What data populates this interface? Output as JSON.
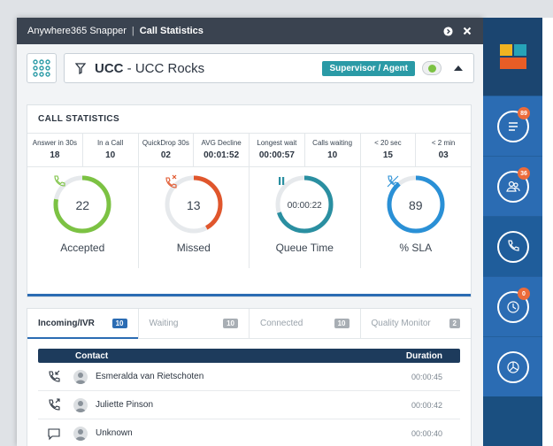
{
  "window": {
    "app_name": "Anywhere365 Snapper",
    "separator": "|",
    "section": "Call Statistics"
  },
  "queue": {
    "name_bold": "UCC",
    "name_rest": " - UCC Rocks",
    "role_label": "Supervisor / Agent"
  },
  "stats": {
    "heading": "CALL STATISTICS",
    "metrics": [
      {
        "label": "Answer in 30s",
        "value": "18"
      },
      {
        "label": "In a Call",
        "value": "10"
      },
      {
        "label": "QuickDrop 30s",
        "value": "02"
      },
      {
        "label": "AVG Decline",
        "value": "00:01:52"
      },
      {
        "label": "Longest wait",
        "value": "00:00:57"
      },
      {
        "label": "Calls waiting",
        "value": "10"
      },
      {
        "label": "< 20 sec",
        "value": "15"
      },
      {
        "label": "< 2 min",
        "value": "03"
      }
    ],
    "gauges": [
      {
        "label": "Accepted",
        "value": "22",
        "color": "#7cc243",
        "fraction": 0.78,
        "icon": "phone-icon"
      },
      {
        "label": "Missed",
        "value": "13",
        "color": "#e0562c",
        "fraction": 0.42,
        "icon": "missed-call-icon"
      },
      {
        "label": "Queue Time",
        "value": "00:00:22",
        "color": "#2a8fa1",
        "fraction": 0.7,
        "icon": "pause-icon"
      },
      {
        "label": "% SLA",
        "value": "89",
        "color": "#2a90d6",
        "fraction": 0.89,
        "icon": "sla-phone-icon"
      }
    ]
  },
  "tabs": [
    {
      "label": "Incoming/IVR",
      "count": "10",
      "active": true
    },
    {
      "label": "Waiting",
      "count": "10",
      "active": false
    },
    {
      "label": "Connected",
      "count": "10",
      "active": false
    },
    {
      "label": "Quality Monitor",
      "count": "2",
      "active": false
    }
  ],
  "list": {
    "col_contact": "Contact",
    "col_duration": "Duration",
    "rows": [
      {
        "name": "Esmeralda van Rietschoten",
        "duration": "00:00:45",
        "icon": "incoming-call-icon"
      },
      {
        "name": "Juliette Pinson",
        "duration": "00:00:42",
        "icon": "outgoing-call-icon"
      },
      {
        "name": "Unknown",
        "duration": "00:00:40",
        "icon": "chat-icon"
      }
    ]
  },
  "sidebar": {
    "items": [
      {
        "icon": "list-icon",
        "badge": "89"
      },
      {
        "icon": "group-icon",
        "badge": "36"
      },
      {
        "icon": "phone-icon",
        "badge": ""
      },
      {
        "icon": "history-icon",
        "badge": "0"
      },
      {
        "icon": "chart-icon",
        "badge": ""
      }
    ]
  },
  "colors": {
    "accent": "#2b6cb3",
    "titlebar": "#3a4350",
    "role_badge": "#2a9aa6",
    "badge_orange": "#ec6b3a"
  }
}
